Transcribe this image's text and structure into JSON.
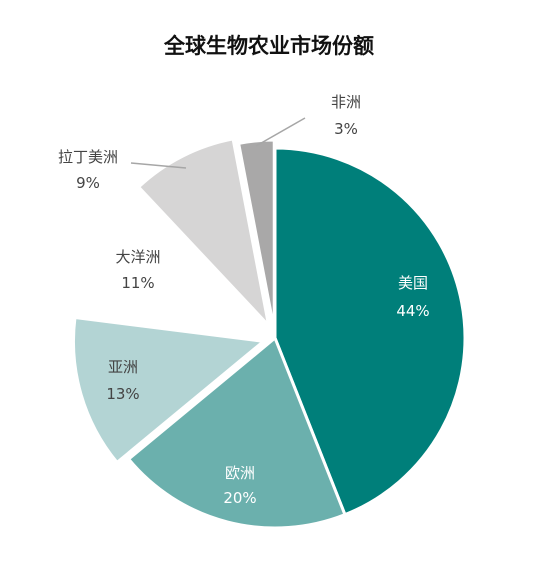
{
  "chart_data": {
    "type": "pie",
    "title": "全球生物农业市场份额",
    "slices": [
      {
        "label": "美国",
        "value": 44,
        "value_label": "44%",
        "color": "#007f7a",
        "text_color": "#ffffff"
      },
      {
        "label": "欧洲",
        "value": 20,
        "value_label": "20%",
        "color": "#6bb0ad",
        "text_color": "#ffffff"
      },
      {
        "label": "亚洲",
        "value": 13,
        "value_label": "13%",
        "color": "#b3d4d4",
        "text_color": "#444444"
      },
      {
        "label": "大洋洲",
        "value": 11,
        "value_label": "11%",
        "color": "#ffffff",
        "text_color": "#444444"
      },
      {
        "label": "拉丁美洲",
        "value": 9,
        "value_label": "9%",
        "color": "#d6d5d5",
        "text_color": "#444444"
      },
      {
        "label": "非洲",
        "value": 3,
        "value_label": "3%",
        "color": "#a9a8a8",
        "text_color": "#444444"
      }
    ],
    "start_position": "12 o'clock",
    "direction": "clockwise",
    "exploded": true
  }
}
